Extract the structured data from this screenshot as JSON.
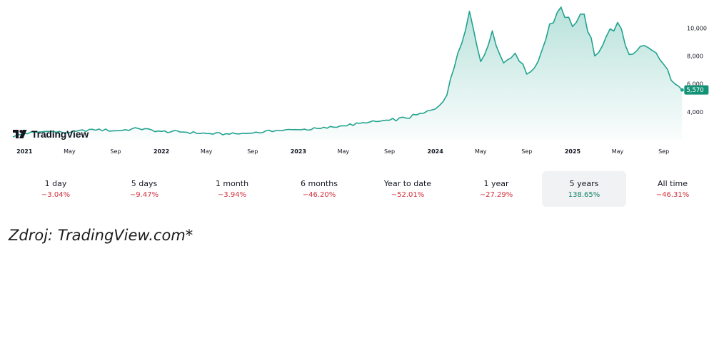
{
  "brand": {
    "name": "TradingView"
  },
  "chart_data": {
    "type": "area",
    "x": [
      "2020-12-01",
      "2021-01-01",
      "2021-03-01",
      "2021-05-01",
      "2021-07-01",
      "2021-09-01",
      "2021-11-01",
      "2022-01-01",
      "2022-03-01",
      "2022-05-01",
      "2022-07-01",
      "2022-09-01",
      "2022-11-01",
      "2023-01-01",
      "2023-03-01",
      "2023-05-01",
      "2023-07-01",
      "2023-09-01",
      "2023-10-15",
      "2023-12-01",
      "2024-01-01",
      "2024-02-01",
      "2024-03-01",
      "2024-04-01",
      "2024-05-01",
      "2024-06-01",
      "2024-07-01",
      "2024-08-01",
      "2024-09-01",
      "2024-10-01",
      "2024-11-01",
      "2024-12-01",
      "2025-01-01",
      "2025-02-01",
      "2025-03-01",
      "2025-04-01",
      "2025-05-01",
      "2025-06-01",
      "2025-07-01",
      "2025-08-01",
      "2025-09-01",
      "2025-10-01",
      "2025-10-20"
    ],
    "values": [
      2200,
      2450,
      2600,
      2500,
      2750,
      2650,
      2800,
      2600,
      2550,
      2450,
      2400,
      2480,
      2650,
      2720,
      2800,
      3000,
      3200,
      3400,
      3550,
      3900,
      4200,
      5200,
      8200,
      11200,
      7600,
      9800,
      7500,
      8200,
      6700,
      7600,
      10300,
      11500,
      10100,
      11000,
      8000,
      9400,
      10400,
      8100,
      8700,
      8400,
      7400,
      6000,
      5570
    ],
    "xlim": [
      "2020-12-01",
      "2025-10-25"
    ],
    "ylim": [
      2000,
      11600
    ],
    "y_ticks": [
      "4,000",
      "6,000",
      "8,000",
      "10,000"
    ],
    "y_tick_values": [
      4000,
      6000,
      8000,
      10000
    ],
    "x_ticks": [
      {
        "label": "2021",
        "date": "2021-01-01",
        "bold": true
      },
      {
        "label": "May",
        "date": "2021-05-01",
        "bold": false
      },
      {
        "label": "Sep",
        "date": "2021-09-01",
        "bold": false
      },
      {
        "label": "2022",
        "date": "2022-01-01",
        "bold": true
      },
      {
        "label": "May",
        "date": "2022-05-01",
        "bold": false
      },
      {
        "label": "Sep",
        "date": "2022-09-01",
        "bold": false
      },
      {
        "label": "2023",
        "date": "2023-01-01",
        "bold": true
      },
      {
        "label": "May",
        "date": "2023-05-01",
        "bold": false
      },
      {
        "label": "Sep",
        "date": "2023-09-01",
        "bold": false
      },
      {
        "label": "2024",
        "date": "2024-01-01",
        "bold": true
      },
      {
        "label": "May",
        "date": "2024-05-01",
        "bold": false
      },
      {
        "label": "Sep",
        "date": "2024-09-01",
        "bold": false
      },
      {
        "label": "2025",
        "date": "2025-01-01",
        "bold": true
      },
      {
        "label": "May",
        "date": "2025-05-01",
        "bold": false
      },
      {
        "label": "Sep",
        "date": "2025-09-01",
        "bold": false
      }
    ],
    "last_value_label": "5,570",
    "grid": false,
    "colors": {
      "line": "#22a38f",
      "fill": "#22a38f",
      "badge": "#149277"
    }
  },
  "periods": [
    {
      "label": "1 day",
      "change": "−3.04%",
      "tone": "neg",
      "active": false
    },
    {
      "label": "5 days",
      "change": "−9.47%",
      "tone": "neg",
      "active": false
    },
    {
      "label": "1 month",
      "change": "−3.94%",
      "tone": "neg",
      "active": false
    },
    {
      "label": "6 months",
      "change": "−46.20%",
      "tone": "neg",
      "active": false
    },
    {
      "label": "Year to date",
      "change": "−52.01%",
      "tone": "neg",
      "active": false
    },
    {
      "label": "1 year",
      "change": "−27.29%",
      "tone": "neg",
      "active": false
    },
    {
      "label": "5 years",
      "change": "138.65%",
      "tone": "pos",
      "active": true
    },
    {
      "label": "All time",
      "change": "−46.31%",
      "tone": "neg",
      "active": false
    }
  ],
  "source": "Zdroj: TradingView.com*"
}
